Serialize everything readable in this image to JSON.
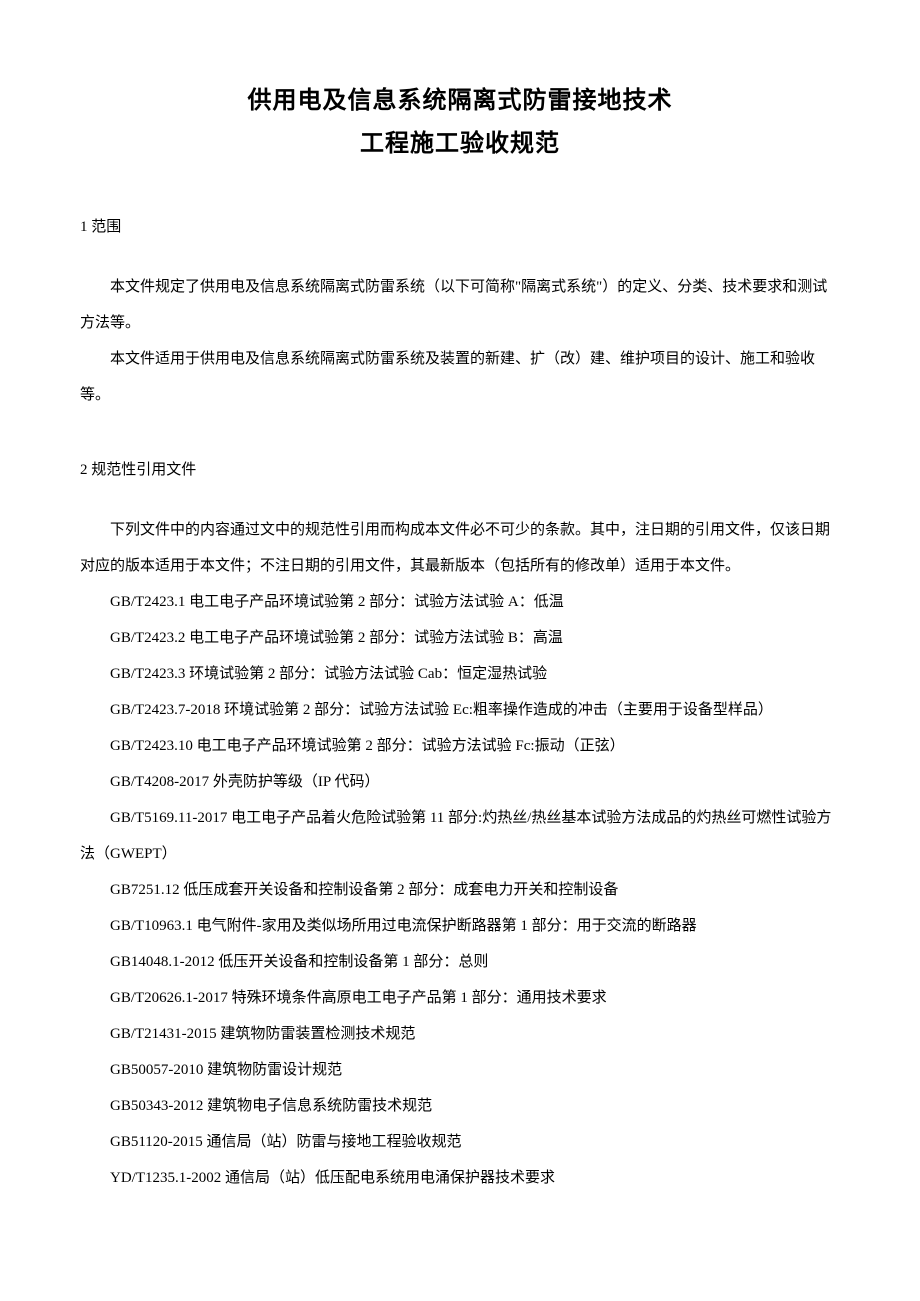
{
  "title": {
    "line1": "供用电及信息系统隔离式防雷接地技术",
    "line2": "工程施工验收规范"
  },
  "sections": [
    {
      "heading": "1 范围",
      "paragraphs": [
        "本文件规定了供用电及信息系统隔离式防雷系统（以下可简称\"隔离式系统\"）的定义、分类、技术要求和测试方法等。",
        "本文件适用于供用电及信息系统隔离式防雷系统及装置的新建、扩（改）建、维护项目的设计、施工和验收等。"
      ]
    },
    {
      "heading": "2 规范性引用文件",
      "paragraphs": [
        "下列文件中的内容通过文中的规范性引用而构成本文件必不可少的条款。其中，注日期的引用文件，仅该日期对应的版本适用于本文件；不注日期的引用文件，其最新版本（包括所有的修改单）适用于本文件。"
      ],
      "references": [
        "GB/T2423.1 电工电子产品环境试验第 2 部分：试验方法试验 A：低温",
        "GB/T2423.2 电工电子产品环境试验第 2 部分：试验方法试验 B：高温",
        "GB/T2423.3 环境试验第 2 部分：试验方法试验 Cab：恒定湿热试验",
        "GB/T2423.7-2018 环境试验第 2 部分：试验方法试验 Ec:粗率操作造成的冲击（主要用于设备型样品）",
        "GB/T2423.10 电工电子产品环境试验第 2 部分：试验方法试验 Fc:振动（正弦）",
        "GB/T4208-2017 外壳防护等级（IP 代码）",
        "GB/T5169.11-2017 电工电子产品着火危险试验第 11 部分:灼热丝/热丝基本试验方法成品的灼热丝可燃性试验方法（GWEPT）",
        "GB7251.12 低压成套开关设备和控制设备第 2 部分：成套电力开关和控制设备",
        "GB/T10963.1 电气附件-家用及类似场所用过电流保护断路器第 1 部分：用于交流的断路器",
        "GB14048.1-2012 低压开关设备和控制设备第 1 部分：总则",
        "GB/T20626.1-2017 特殊环境条件高原电工电子产品第 1 部分：通用技术要求",
        "GB/T21431-2015 建筑物防雷装置检测技术规范",
        "GB50057-2010 建筑物防雷设计规范",
        "GB50343-2012 建筑物电子信息系统防雷技术规范",
        "GB51120-2015 通信局（站）防雷与接地工程验收规范",
        "YD/T1235.1-2002 通信局（站）低压配电系统用电涌保护器技术要求"
      ]
    }
  ],
  "style": {
    "background": "#ffffff",
    "text_color": "#000000",
    "title_fontsize": 24,
    "body_fontsize": 15,
    "line_height_body": 2.4,
    "indent_em": 2
  }
}
